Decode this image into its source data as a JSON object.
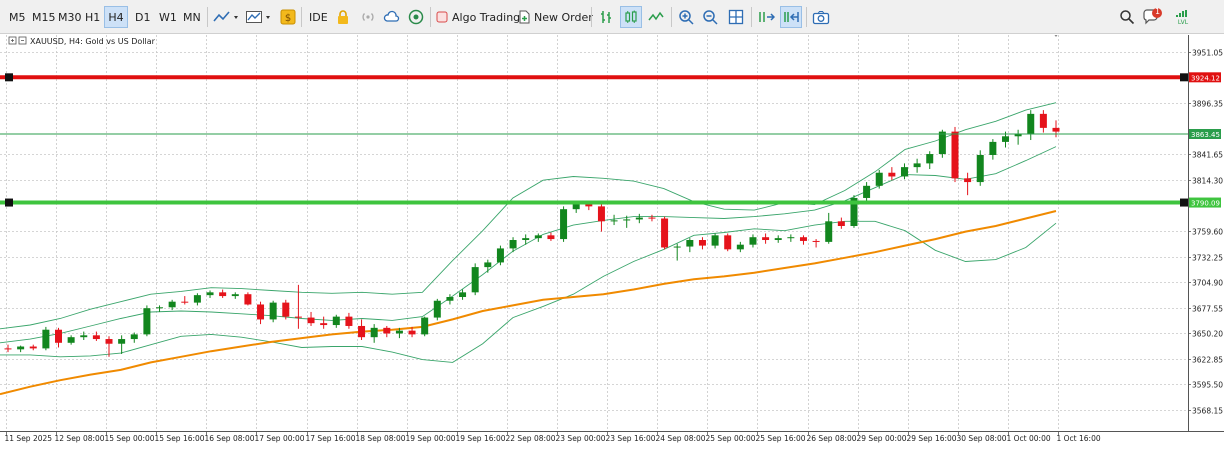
{
  "toolbar": {
    "timeframes": [
      "M5",
      "M15",
      "M30",
      "H1",
      "H4",
      "D1",
      "W1",
      "MN"
    ],
    "active_timeframe": "H4",
    "ide_label": "IDE",
    "algo_label": "Algo Trading",
    "new_order_label": "New Order",
    "notification_count": "1",
    "lvl_label": "LVL"
  },
  "chart_data": {
    "type": "candlestick",
    "title": "XAUUSD, H4:  Gold vs US Dollar",
    "y_ticks": [
      "3951.05",
      "3896.35",
      "3841.65",
      "3814.30",
      "3759.60",
      "3732.25",
      "3704.90",
      "3677.55",
      "3650.20",
      "3622.85",
      "3595.50",
      "3568.15"
    ],
    "ylim": [
      3545.6,
      3969.4
    ],
    "x_ticks": [
      "11 Sep 2025",
      "12 Sep 08:00",
      "15 Sep 00:00",
      "15 Sep 16:00",
      "16 Sep 08:00",
      "17 Sep 00:00",
      "17 Sep 16:00",
      "18 Sep 08:00",
      "19 Sep 00:00",
      "19 Sep 16:00",
      "22 Sep 08:00",
      "23 Sep 00:00",
      "23 Sep 16:00",
      "24 Sep 08:00",
      "25 Sep 00:00",
      "25 Sep 16:00",
      "26 Sep 08:00",
      "29 Sep 00:00",
      "29 Sep 16:00",
      "30 Sep 08:00",
      "1 Oct 00:00",
      "1 Oct 16:00"
    ],
    "hlines": [
      {
        "price": 3924.12,
        "label": "3924.12",
        "color": "#e01010"
      },
      {
        "price": 3863.45,
        "label": "3863.45",
        "color": "#2a9d4b"
      },
      {
        "price": 3790.09,
        "label": "3790.09",
        "color": "#3ec43e"
      }
    ],
    "candles": [
      [
        3634,
        3638,
        3630,
        3633
      ],
      [
        3633,
        3637,
        3630,
        3636
      ],
      [
        3636,
        3638,
        3632,
        3634
      ],
      [
        3634,
        3657,
        3632,
        3654
      ],
      [
        3654,
        3656,
        3635,
        3640
      ],
      [
        3640,
        3648,
        3638,
        3646
      ],
      [
        3646,
        3652,
        3643,
        3648
      ],
      [
        3648,
        3652,
        3642,
        3644
      ],
      [
        3644,
        3647,
        3625,
        3639
      ],
      [
        3639,
        3648,
        3628,
        3644
      ],
      [
        3644,
        3651,
        3640,
        3649
      ],
      [
        3649,
        3680,
        3647,
        3677
      ],
      [
        3677,
        3680,
        3673,
        3678
      ],
      [
        3678,
        3686,
        3675,
        3684
      ],
      [
        3684,
        3690,
        3681,
        3683
      ],
      [
        3683,
        3693,
        3680,
        3691
      ],
      [
        3691,
        3696,
        3688,
        3694
      ],
      [
        3694,
        3697,
        3688,
        3690
      ],
      [
        3690,
        3694,
        3687,
        3692
      ],
      [
        3692,
        3694,
        3680,
        3681
      ],
      [
        3681,
        3684,
        3660,
        3665
      ],
      [
        3665,
        3685,
        3662,
        3683
      ],
      [
        3683,
        3686,
        3665,
        3668
      ],
      [
        3668,
        3702,
        3655,
        3667
      ],
      [
        3667,
        3673,
        3658,
        3661
      ],
      [
        3661,
        3668,
        3655,
        3659
      ],
      [
        3659,
        3670,
        3656,
        3668
      ],
      [
        3668,
        3672,
        3655,
        3658
      ],
      [
        3658,
        3665,
        3643,
        3646
      ],
      [
        3646,
        3660,
        3640,
        3656
      ],
      [
        3656,
        3658,
        3646,
        3650
      ],
      [
        3650,
        3656,
        3645,
        3653
      ],
      [
        3653,
        3657,
        3646,
        3649
      ],
      [
        3649,
        3668,
        3647,
        3667
      ],
      [
        3667,
        3687,
        3664,
        3685
      ],
      [
        3685,
        3692,
        3681,
        3689
      ],
      [
        3689,
        3697,
        3686,
        3694
      ],
      [
        3694,
        3725,
        3691,
        3721
      ],
      [
        3721,
        3729,
        3715,
        3726
      ],
      [
        3726,
        3744,
        3723,
        3741
      ],
      [
        3741,
        3753,
        3737,
        3750
      ],
      [
        3750,
        3756,
        3745,
        3752
      ],
      [
        3752,
        3757,
        3748,
        3755
      ],
      [
        3755,
        3758,
        3749,
        3751
      ],
      [
        3751,
        3786,
        3748,
        3783
      ],
      [
        3783,
        3792,
        3779,
        3789
      ],
      [
        3789,
        3792,
        3782,
        3786
      ],
      [
        3786,
        3790,
        3759,
        3770
      ],
      [
        3770,
        3777,
        3766,
        3771
      ],
      [
        3771,
        3776,
        3763,
        3772
      ],
      [
        3772,
        3778,
        3768,
        3774
      ],
      [
        3774,
        3777,
        3770,
        3773
      ],
      [
        3773,
        3775,
        3740,
        3742
      ],
      [
        3742,
        3746,
        3728,
        3743
      ],
      [
        3743,
        3752,
        3737,
        3750
      ],
      [
        3750,
        3753,
        3740,
        3744
      ],
      [
        3744,
        3757,
        3741,
        3755
      ],
      [
        3755,
        3757,
        3738,
        3740
      ],
      [
        3740,
        3748,
        3737,
        3745
      ],
      [
        3745,
        3756,
        3742,
        3753
      ],
      [
        3753,
        3757,
        3746,
        3750
      ],
      [
        3750,
        3755,
        3747,
        3752
      ],
      [
        3752,
        3756,
        3748,
        3753
      ],
      [
        3753,
        3755,
        3745,
        3749
      ],
      [
        3749,
        3751,
        3742,
        3748
      ],
      [
        3748,
        3779,
        3746,
        3770
      ],
      [
        3770,
        3774,
        3762,
        3765
      ],
      [
        3765,
        3798,
        3763,
        3795
      ],
      [
        3795,
        3812,
        3792,
        3808
      ],
      [
        3808,
        3825,
        3805,
        3822
      ],
      [
        3822,
        3828,
        3814,
        3818
      ],
      [
        3818,
        3832,
        3815,
        3828
      ],
      [
        3828,
        3837,
        3822,
        3832
      ],
      [
        3832,
        3845,
        3826,
        3842
      ],
      [
        3842,
        3868,
        3838,
        3866
      ],
      [
        3866,
        3871,
        3812,
        3816
      ],
      [
        3816,
        3822,
        3798,
        3812
      ],
      [
        3812,
        3846,
        3808,
        3841
      ],
      [
        3841,
        3858,
        3836,
        3855
      ],
      [
        3855,
        3866,
        3849,
        3861
      ],
      [
        3861,
        3868,
        3852,
        3864
      ],
      [
        3864,
        3889,
        3857,
        3885
      ],
      [
        3885,
        3889,
        3865,
        3870
      ],
      [
        3870,
        3878,
        3860,
        3866
      ]
    ],
    "ma_y": [
      3585,
      3593,
      3600,
      3606,
      3611,
      3619,
      3625,
      3631,
      3636,
      3641,
      3645,
      3649,
      3652,
      3654,
      3657,
      3665,
      3674,
      3680,
      3686,
      3689,
      3692,
      3697,
      3703,
      3708,
      3711,
      3715,
      3720,
      3725,
      3731,
      3737,
      3744,
      3751,
      3759,
      3765,
      3773,
      3781
    ],
    "bb_upper": [
      3655,
      3659,
      3666,
      3676,
      3684,
      3692,
      3695,
      3699,
      3698,
      3696,
      3694,
      3693,
      3694,
      3692,
      3694,
      3728,
      3760,
      3795,
      3814,
      3818,
      3816,
      3813,
      3805,
      3791,
      3783,
      3782,
      3790,
      3788,
      3803,
      3823,
      3847,
      3856,
      3868,
      3877,
      3889,
      3897
    ],
    "bb_mid": [
      3640,
      3644,
      3650,
      3658,
      3666,
      3673,
      3674,
      3673,
      3671,
      3669,
      3666,
      3664,
      3666,
      3664,
      3668,
      3690,
      3713,
      3738,
      3756,
      3766,
      3771,
      3775,
      3775,
      3774,
      3773,
      3775,
      3778,
      3782,
      3792,
      3806,
      3820,
      3819,
      3815,
      3821,
      3835,
      3850
    ],
    "bb_lower": [
      3627,
      3627,
      3625,
      3626,
      3629,
      3638,
      3647,
      3649,
      3646,
      3641,
      3635,
      3636,
      3636,
      3630,
      3622,
      3619,
      3639,
      3667,
      3679,
      3692,
      3711,
      3727,
      3740,
      3755,
      3758,
      3762,
      3760,
      3766,
      3770,
      3770,
      3760,
      3739,
      3727,
      3729,
      3742,
      3768
    ]
  }
}
